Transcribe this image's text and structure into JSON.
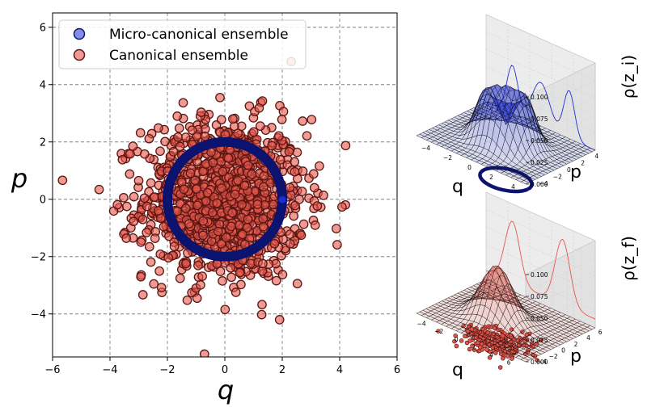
{
  "chart_data": [
    {
      "type": "scatter",
      "xlabel": "q",
      "ylabel": "p",
      "xlim": [
        -6,
        6
      ],
      "ylim": [
        -5.5,
        6.5
      ],
      "xticks": [
        "−6",
        "−4",
        "−2",
        "0",
        "2",
        "4",
        "6"
      ],
      "yticks": [
        "−4",
        "−2",
        "0",
        "2",
        "4",
        "6"
      ],
      "grid": true,
      "legend_position": "top-left",
      "series": [
        {
          "name": "Micro-canonical ensemble",
          "shape": "circle of radius 2 centered at origin",
          "radius": 2,
          "n_points": 700,
          "color": "#1f2fd6"
        },
        {
          "name": "Canonical ensemble",
          "shape": "2D Gaussian cloud centered at origin",
          "std": 1.4,
          "n_points": 1200,
          "color": "#e4574b"
        }
      ]
    },
    {
      "type": "surface3d",
      "zlabel": "ρ(z_i)",
      "xlabel": "q",
      "ylabel": "p",
      "xticks": [
        "−4",
        "−2",
        "0",
        "2",
        "4"
      ],
      "yticks": [
        "4",
        "2",
        "0",
        "−2",
        "−4"
      ],
      "zticks": [
        "0.000",
        "0.025",
        "0.050",
        "0.075",
        "0.100"
      ],
      "zlim": [
        0,
        0.1
      ],
      "surface": "ring-shaped density (micro-canonical)",
      "color": "#2a3bd8"
    },
    {
      "type": "surface3d",
      "zlabel": "ρ(z_f)",
      "xlabel": "q",
      "ylabel": "p",
      "xticks": [
        "−4",
        "−2",
        "0",
        "2",
        "4",
        "6"
      ],
      "yticks": [
        "6",
        "4",
        "2",
        "0",
        "−2",
        "−4"
      ],
      "zticks": [
        "0.000",
        "0.025",
        "0.050",
        "0.075",
        "0.100"
      ],
      "zlim": [
        0,
        0.1
      ],
      "surface": "single Gaussian peak (canonical)",
      "color": "#d8473a"
    }
  ],
  "colors": {
    "blue": "#1f2fd6",
    "blue_dark": "#0c1470",
    "red": "#e4574b",
    "red_dark": "#5a1612",
    "grid": "#808080",
    "pane": "#f0f0f0"
  }
}
